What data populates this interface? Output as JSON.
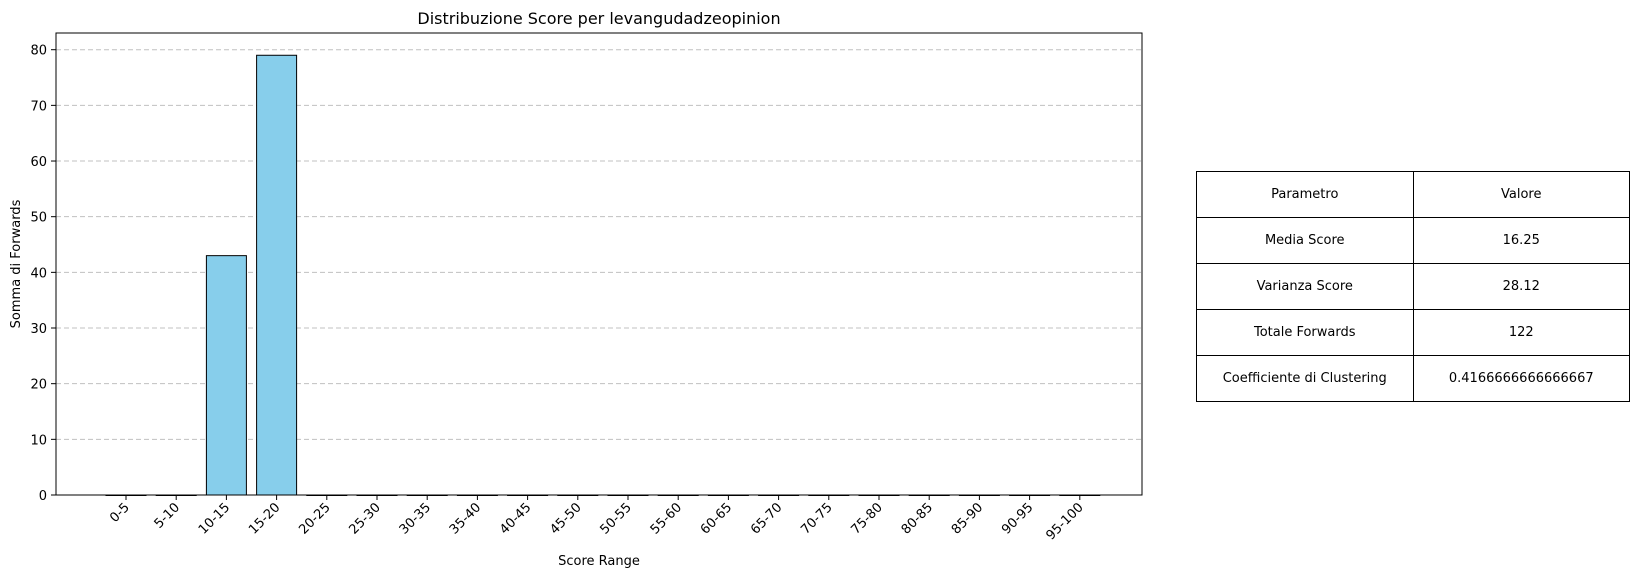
{
  "chart_data": {
    "type": "bar",
    "title": "Distribuzione Score per levangudadzeopinion",
    "xlabel": "Score Range",
    "ylabel": "Somma di Forwards",
    "categories": [
      "0-5",
      "5-10",
      "10-15",
      "15-20",
      "20-25",
      "25-30",
      "30-35",
      "35-40",
      "40-45",
      "45-50",
      "50-55",
      "55-60",
      "60-65",
      "65-70",
      "70-75",
      "75-80",
      "80-85",
      "85-90",
      "90-95",
      "95-100"
    ],
    "values": [
      0,
      0,
      43,
      79,
      0,
      0,
      0,
      0,
      0,
      0,
      0,
      0,
      0,
      0,
      0,
      0,
      0,
      0,
      0,
      0
    ],
    "ylim": [
      0,
      83
    ],
    "yticks": [
      0,
      10,
      20,
      30,
      40,
      50,
      60,
      70,
      80
    ],
    "grid": "y-dashed",
    "colors": {
      "bar_fill": "#87ceeb",
      "bar_edge": "#000000",
      "grid": "#c0c0c0"
    }
  },
  "table": {
    "header": [
      "Parametro",
      "Valore"
    ],
    "rows": [
      [
        "Media Score",
        "16.25"
      ],
      [
        "Varianza Score",
        "28.12"
      ],
      [
        "Totale Forwards",
        "122"
      ],
      [
        "Coefficiente di Clustering",
        "0.4166666666666667"
      ]
    ]
  }
}
